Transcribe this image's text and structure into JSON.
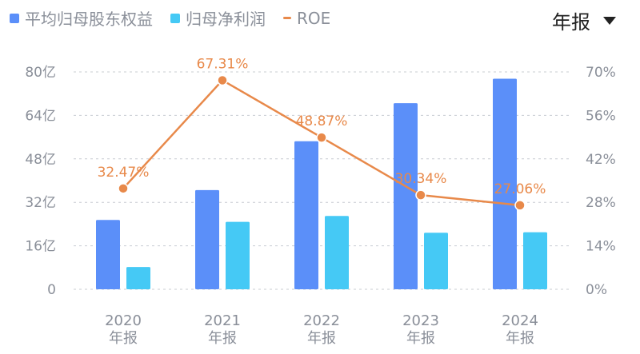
{
  "legend": [
    {
      "label": "平均归母股东权益",
      "color": "#5B8FF9",
      "kind": "bar"
    },
    {
      "label": "归母净利润",
      "color": "#45C9F5",
      "kind": "bar"
    },
    {
      "label": "ROE",
      "color": "#E8894A",
      "kind": "line"
    }
  ],
  "period": {
    "label": "年报"
  },
  "chart_data": {
    "type": "bar",
    "categories": [
      "2020\n年报",
      "2021\n年报",
      "2022\n年报",
      "2023\n年报",
      "2024\n年报"
    ],
    "series": [
      {
        "name": "平均归母股东权益",
        "type": "bar",
        "axis": "left",
        "color": "#5B8FF9",
        "values": [
          25.5,
          36.5,
          54.5,
          68.5,
          77.5
        ]
      },
      {
        "name": "归母净利润",
        "type": "bar",
        "axis": "left",
        "color": "#45C9F5",
        "values": [
          8.2,
          24.8,
          27.0,
          20.8,
          21.0
        ]
      },
      {
        "name": "ROE",
        "type": "line",
        "axis": "right",
        "color": "#E8894A",
        "values": [
          32.47,
          67.31,
          48.87,
          30.34,
          27.06
        ],
        "labels": [
          "32.47%",
          "67.31%",
          "48.87%",
          "30.34%",
          "27.06%"
        ]
      }
    ],
    "left_axis": {
      "ticks": [
        "0",
        "16亿",
        "32亿",
        "48亿",
        "64亿",
        "80亿"
      ],
      "ylim": [
        0,
        80
      ]
    },
    "right_axis": {
      "ticks": [
        "0%",
        "14%",
        "28%",
        "42%",
        "56%",
        "70%"
      ],
      "ylim": [
        0,
        70
      ]
    },
    "grid": true,
    "legend_position": "top-left"
  }
}
